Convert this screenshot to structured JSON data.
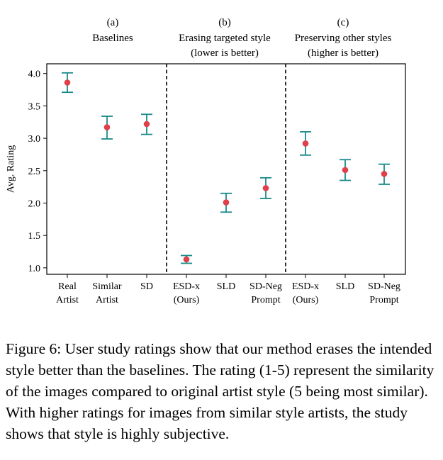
{
  "chart_data": {
    "type": "scatter",
    "ylabel": "Avg. Rating",
    "ylim": [
      0.9,
      4.15
    ],
    "yticks": [
      "1.0",
      "1.5",
      "2.0",
      "2.5",
      "3.0",
      "3.5",
      "4.0"
    ],
    "marker_color": "#e0404a",
    "errorbar_color": "#1a8a8a",
    "groups": [
      {
        "label": "(a)",
        "title_lines": [
          "Baselines"
        ],
        "points": [
          {
            "label": [
              "Real",
              "Artist"
            ],
            "y": 3.86,
            "low": 3.71,
            "high": 4.01
          },
          {
            "label": [
              "Similar",
              "Artist"
            ],
            "y": 3.17,
            "low": 2.99,
            "high": 3.34
          },
          {
            "label": [
              "SD"
            ],
            "y": 3.22,
            "low": 3.06,
            "high": 3.37
          }
        ]
      },
      {
        "label": "(b)",
        "title_lines": [
          "Erasing targeted style",
          "(lower is better)"
        ],
        "points": [
          {
            "label": [
              "ESD-x",
              "(Ours)"
            ],
            "y": 1.13,
            "low": 1.07,
            "high": 1.19
          },
          {
            "label": [
              "SLD"
            ],
            "y": 2.01,
            "low": 1.86,
            "high": 2.15
          },
          {
            "label": [
              "SD-Neg",
              "Prompt"
            ],
            "y": 2.23,
            "low": 2.07,
            "high": 2.39
          }
        ]
      },
      {
        "label": "(c)",
        "title_lines": [
          "Preserving other styles",
          "(higher is better)"
        ],
        "points": [
          {
            "label": [
              "ESD-x",
              "(Ours)"
            ],
            "y": 2.92,
            "low": 2.74,
            "high": 3.1
          },
          {
            "label": [
              "SLD"
            ],
            "y": 2.51,
            "low": 2.35,
            "high": 2.67
          },
          {
            "label": [
              "SD-Neg",
              "Prompt"
            ],
            "y": 2.45,
            "low": 2.29,
            "high": 2.6
          }
        ]
      }
    ]
  },
  "caption": "Figure 6: User study ratings show that our method erases the intended style better than the baselines. The rating (1-5) represent the similarity of the images compared to original artist style (5 being most similar). With higher ratings for images from similar style artists, the study shows that style is highly subjective."
}
